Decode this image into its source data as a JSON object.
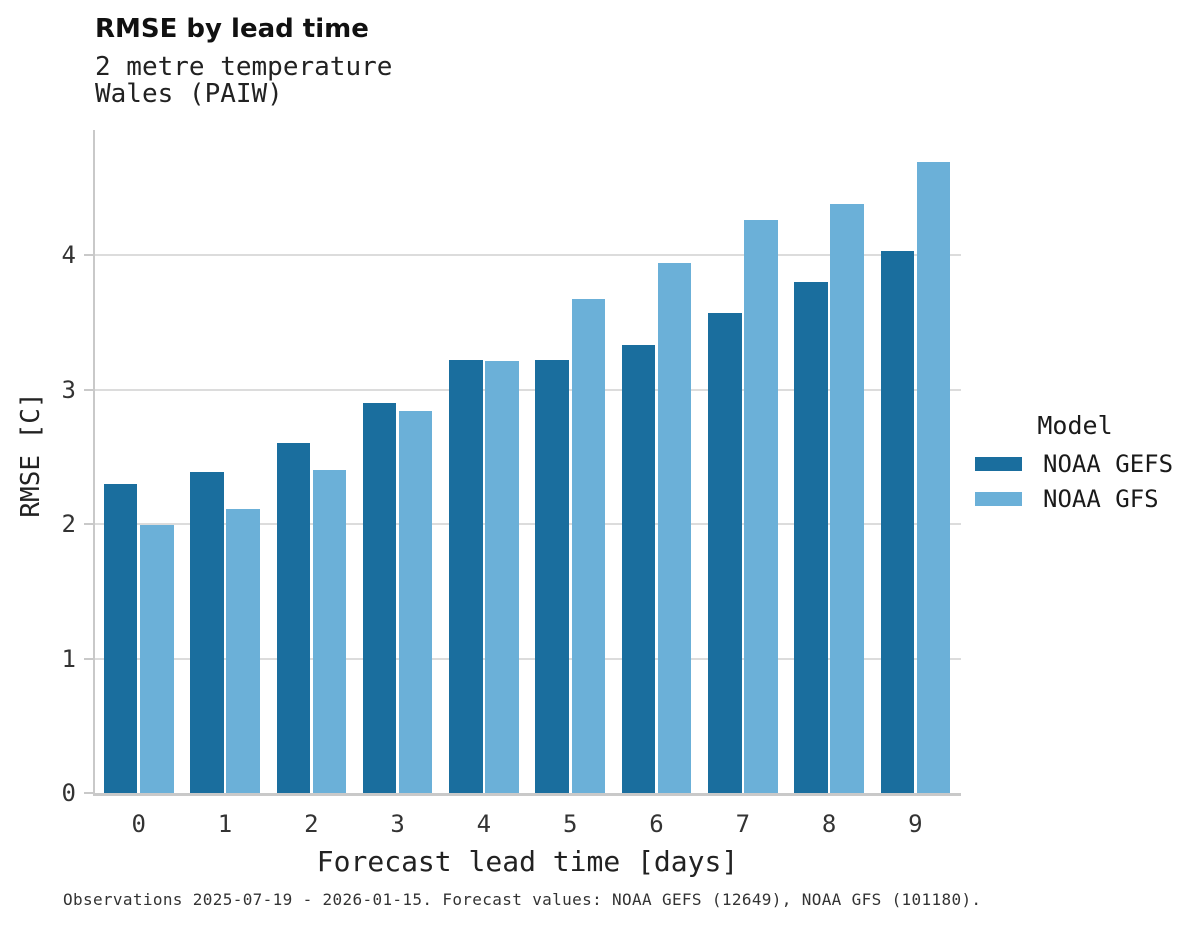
{
  "title": "RMSE by lead time",
  "subtitle_line1": "2 metre temperature",
  "subtitle_line2": "Wales (PAIW)",
  "footer": "Observations 2025-07-19 - 2026-01-15. Forecast values: NOAA GEFS (12649), NOAA GFS (101180).",
  "legend": {
    "title": "Model",
    "items": [
      {
        "label": "NOAA GEFS",
        "color": "#1A6E9E"
      },
      {
        "label": "NOAA GFS",
        "color": "#6BB0D8"
      }
    ]
  },
  "colors": {
    "gefs_dark_blue": "#1A6E9E",
    "gfs_light_blue": "#6BB0D8",
    "gridline": "#DCDCDC",
    "axis_spine": "#C9C9C9"
  },
  "chart_data": {
    "type": "bar",
    "title": "RMSE by lead time",
    "subtitle": [
      "2 metre temperature",
      "Wales (PAIW)"
    ],
    "xlabel": "Forecast lead time [days]",
    "ylabel": "RMSE [C]",
    "categories": [
      "0",
      "1",
      "2",
      "3",
      "4",
      "5",
      "6",
      "7",
      "8",
      "9"
    ],
    "series": [
      {
        "name": "NOAA GEFS",
        "color": "#1A6E9E",
        "values": [
          2.3,
          2.39,
          2.6,
          2.9,
          3.22,
          3.22,
          3.33,
          3.57,
          3.8,
          4.03
        ]
      },
      {
        "name": "NOAA GFS",
        "color": "#6BB0D8",
        "values": [
          1.99,
          2.11,
          2.4,
          2.84,
          3.21,
          3.67,
          3.94,
          4.26,
          4.38,
          4.69
        ]
      }
    ],
    "ylim": [
      0,
      4.93
    ],
    "yticks": [
      0,
      1,
      2,
      3,
      4
    ],
    "grid": "horizontal-at-integer-yticks",
    "legend_position": "right",
    "legend_title": "Model"
  }
}
